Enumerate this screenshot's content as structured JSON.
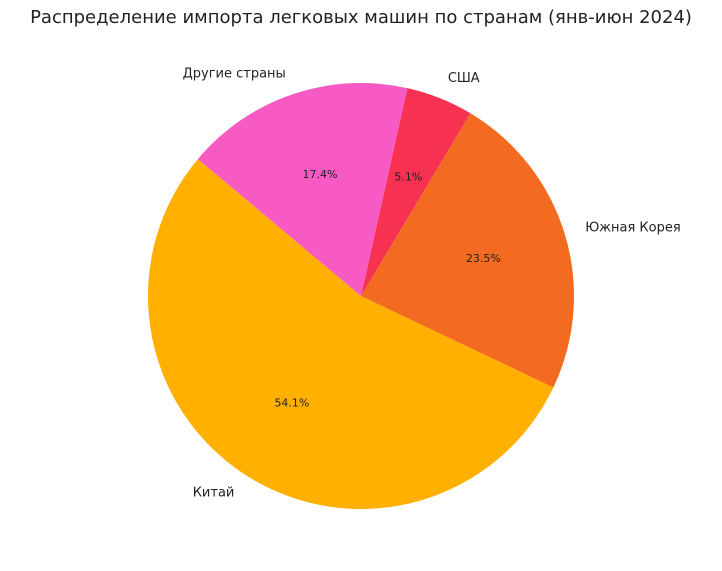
{
  "chart_data": {
    "type": "pie",
    "title": "Распределение импорта легковых машин по странам (янв-июн 2024)",
    "categories": [
      "Китай",
      "Южная Корея",
      "США",
      "Другие страны"
    ],
    "values": [
      54.1,
      23.5,
      5.1,
      17.4
    ],
    "value_labels": [
      "54.1%",
      "23.5%",
      "5.1%",
      "17.4%"
    ],
    "colors": [
      "#FFB000",
      "#F26B21",
      "#F73152",
      "#F75AC3"
    ],
    "start_angle": 140
  }
}
